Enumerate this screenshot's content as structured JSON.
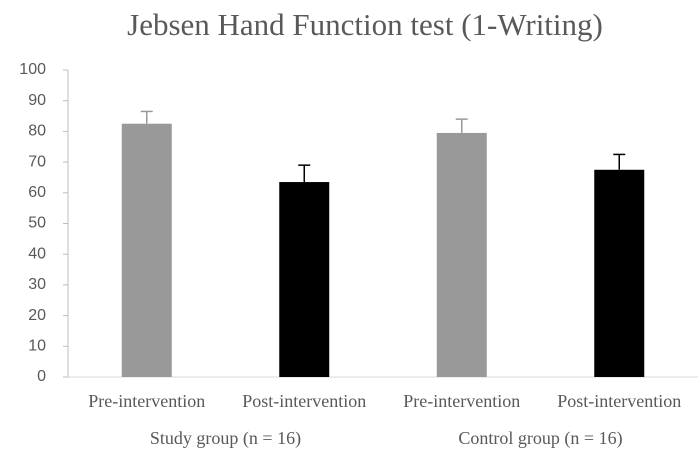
{
  "chart_data": {
    "type": "bar",
    "title": "Jebsen Hand Function test (1-Writing)",
    "categories": [
      "Pre-intervention",
      "Post-intervention",
      "Pre-intervention",
      "Post-intervention"
    ],
    "groups": [
      "Study group (n = 16)",
      "Control group (n = 16)"
    ],
    "values": [
      82.5,
      63.5,
      79.5,
      67.5
    ],
    "errors": [
      4,
      5.5,
      4.5,
      5
    ],
    "colors": [
      "#999999",
      "#000000",
      "#999999",
      "#000000"
    ],
    "ylim": [
      0,
      100
    ],
    "yticks": [
      0,
      10,
      20,
      30,
      40,
      50,
      60,
      70,
      80,
      90,
      100
    ]
  }
}
